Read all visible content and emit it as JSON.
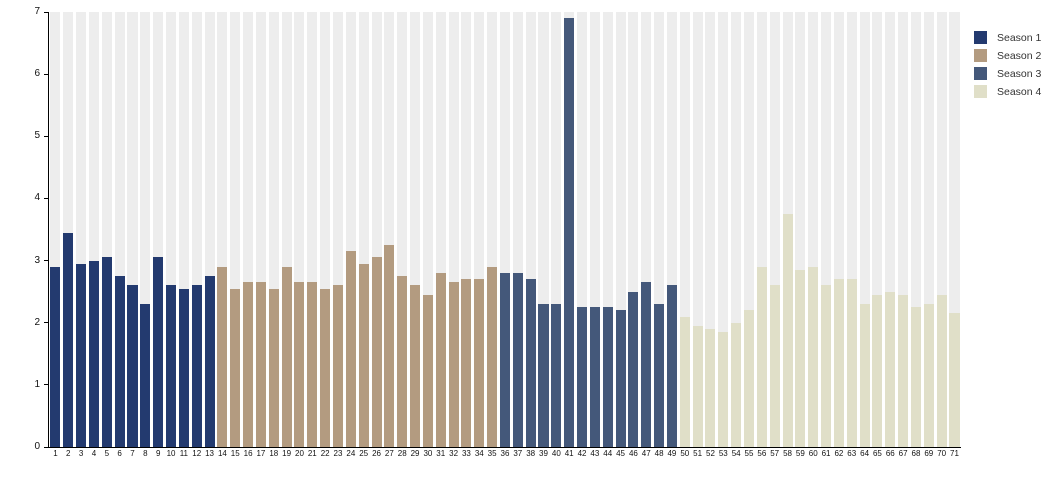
{
  "chart_data": {
    "type": "bar",
    "title": "",
    "xlabel": "",
    "ylabel": "",
    "ylim": [
      0,
      7
    ],
    "yticks": [
      "0",
      "1",
      "2",
      "3",
      "4",
      "5",
      "6",
      "7"
    ],
    "grid": "off",
    "plot_background_stripe_color": "#ededed",
    "legend_position": "top-right",
    "categories": [
      "1",
      "2",
      "3",
      "4",
      "5",
      "6",
      "7",
      "8",
      "9",
      "10",
      "11",
      "12",
      "13",
      "14",
      "15",
      "16",
      "17",
      "18",
      "19",
      "20",
      "21",
      "22",
      "23",
      "24",
      "25",
      "26",
      "27",
      "28",
      "29",
      "30",
      "31",
      "32",
      "33",
      "34",
      "35",
      "36",
      "37",
      "38",
      "39",
      "40",
      "41",
      "42",
      "43",
      "44",
      "45",
      "46",
      "47",
      "48",
      "49",
      "50",
      "51",
      "52",
      "53",
      "54",
      "55",
      "56",
      "57",
      "58",
      "59",
      "60",
      "61",
      "62",
      "63",
      "64",
      "65",
      "66",
      "67",
      "68",
      "69",
      "70",
      "71"
    ],
    "values": [
      2.9,
      3.45,
      2.95,
      3.0,
      3.05,
      2.75,
      2.6,
      2.3,
      3.05,
      2.6,
      2.55,
      2.6,
      2.75,
      2.9,
      2.55,
      2.65,
      2.65,
      2.55,
      2.9,
      2.65,
      2.65,
      2.55,
      2.6,
      3.15,
      2.95,
      3.05,
      3.25,
      2.75,
      2.6,
      2.45,
      2.8,
      2.65,
      2.7,
      2.7,
      2.9,
      2.8,
      2.8,
      2.7,
      2.3,
      2.3,
      6.9,
      2.25,
      2.25,
      2.25,
      2.2,
      2.5,
      2.65,
      2.3,
      2.6,
      2.1,
      1.95,
      1.9,
      1.85,
      2.0,
      2.2,
      2.9,
      2.6,
      3.75,
      2.85,
      2.9,
      2.6,
      2.7,
      2.7,
      2.3,
      2.45,
      2.5,
      2.45,
      2.25,
      2.3,
      2.45,
      2.15
    ],
    "series": [
      {
        "name": "Season 1",
        "color": "#233a6f",
        "category_range": [
          1,
          13
        ]
      },
      {
        "name": "Season 2",
        "color": "#b39b80",
        "category_range": [
          14,
          35
        ]
      },
      {
        "name": "Season 3",
        "color": "#44587a",
        "category_range": [
          36,
          49
        ]
      },
      {
        "name": "Season 4",
        "color": "#e0dfc8",
        "category_range": [
          50,
          71
        ]
      }
    ]
  }
}
